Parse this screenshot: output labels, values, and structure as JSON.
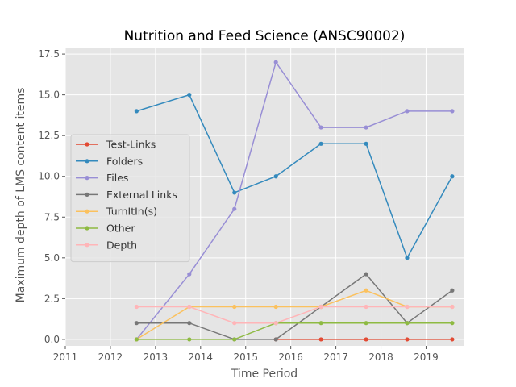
{
  "chart_data": {
    "type": "line",
    "title": "Nutrition and Feed Science (ANSC90002)",
    "xlabel": "Time Period",
    "ylabel": "Maximum depth of LMS content items",
    "xlim": [
      2011.0,
      2019.85
    ],
    "ylim": [
      -0.4,
      17.9
    ],
    "xticks": [
      2011,
      2012,
      2013,
      2014,
      2015,
      2016,
      2017,
      2018,
      2019
    ],
    "xtick_labels": [
      "2011",
      "2012",
      "2013",
      "2014",
      "2015",
      "2016",
      "2017",
      "2018",
      "2019"
    ],
    "yticks": [
      0.0,
      2.5,
      5.0,
      7.5,
      10.0,
      12.5,
      15.0,
      17.5
    ],
    "ytick_labels": [
      "0.0",
      "2.5",
      "5.0",
      "7.5",
      "10.0",
      "12.5",
      "15.0",
      "17.5"
    ],
    "grid": true,
    "legend_position": "center-left",
    "x": [
      2012.58,
      2013.75,
      2014.75,
      2015.67,
      2016.67,
      2017.67,
      2018.58,
      2019.58
    ],
    "series": [
      {
        "name": "Test-Links",
        "color": "#e24a33",
        "values": [
          null,
          null,
          null,
          0,
          0,
          0,
          0,
          0
        ]
      },
      {
        "name": "Folders",
        "color": "#348abd",
        "values": [
          14,
          15,
          9,
          10,
          12,
          12,
          5,
          10
        ]
      },
      {
        "name": "Files",
        "color": "#988ed5",
        "values": [
          0,
          4,
          8,
          17,
          13,
          13,
          14,
          14
        ]
      },
      {
        "name": "External Links",
        "color": "#777777",
        "values": [
          1,
          1,
          0,
          0,
          2,
          4,
          1,
          3
        ]
      },
      {
        "name": "TurnItIn(s)",
        "color": "#fbc15e",
        "values": [
          0,
          2,
          2,
          2,
          2,
          3,
          2,
          2
        ]
      },
      {
        "name": "Other",
        "color": "#8eba42",
        "values": [
          0,
          0,
          0,
          1,
          1,
          1,
          1,
          1
        ]
      },
      {
        "name": "Depth",
        "color": "#ffb5b8",
        "values": [
          2,
          2,
          1,
          1,
          2,
          2,
          2,
          2
        ]
      }
    ],
    "plot_background": "#e5e5e5",
    "grid_color": "#ffffff"
  }
}
